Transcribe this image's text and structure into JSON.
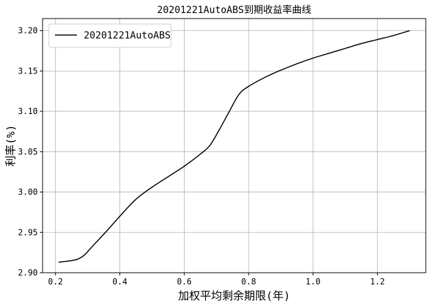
{
  "chart_data": {
    "type": "line",
    "title": "20201221AutoABS到期收益率曲线",
    "xlabel": "加权平均剩余期限(年)",
    "ylabel": "利率(%)",
    "xlim": [
      0.16,
      1.35
    ],
    "ylim": [
      2.9,
      3.215
    ],
    "xticks": [
      "0.2",
      "0.4",
      "0.6",
      "0.8",
      "1.0",
      "1.2"
    ],
    "yticks": [
      "2.90",
      "2.95",
      "3.00",
      "3.05",
      "3.10",
      "3.15",
      "3.20"
    ],
    "grid": true,
    "legend_position": "top-left",
    "series": [
      {
        "name": "20201221AutoABS",
        "color": "#000000",
        "x": [
          0.21,
          0.23,
          0.25,
          0.27,
          0.29,
          0.32,
          0.36,
          0.4,
          0.45,
          0.5,
          0.55,
          0.6,
          0.65,
          0.68,
          0.71,
          0.74,
          0.77,
          0.8,
          0.85,
          0.9,
          0.95,
          1.0,
          1.05,
          1.1,
          1.15,
          1.2,
          1.25,
          1.3
        ],
        "y": [
          2.913,
          2.914,
          2.915,
          2.917,
          2.922,
          2.935,
          2.952,
          2.97,
          2.991,
          3.006,
          3.019,
          3.032,
          3.047,
          3.058,
          3.078,
          3.1,
          3.121,
          3.131,
          3.142,
          3.151,
          3.159,
          3.166,
          3.172,
          3.178,
          3.184,
          3.189,
          3.194,
          3.2
        ]
      }
    ]
  }
}
